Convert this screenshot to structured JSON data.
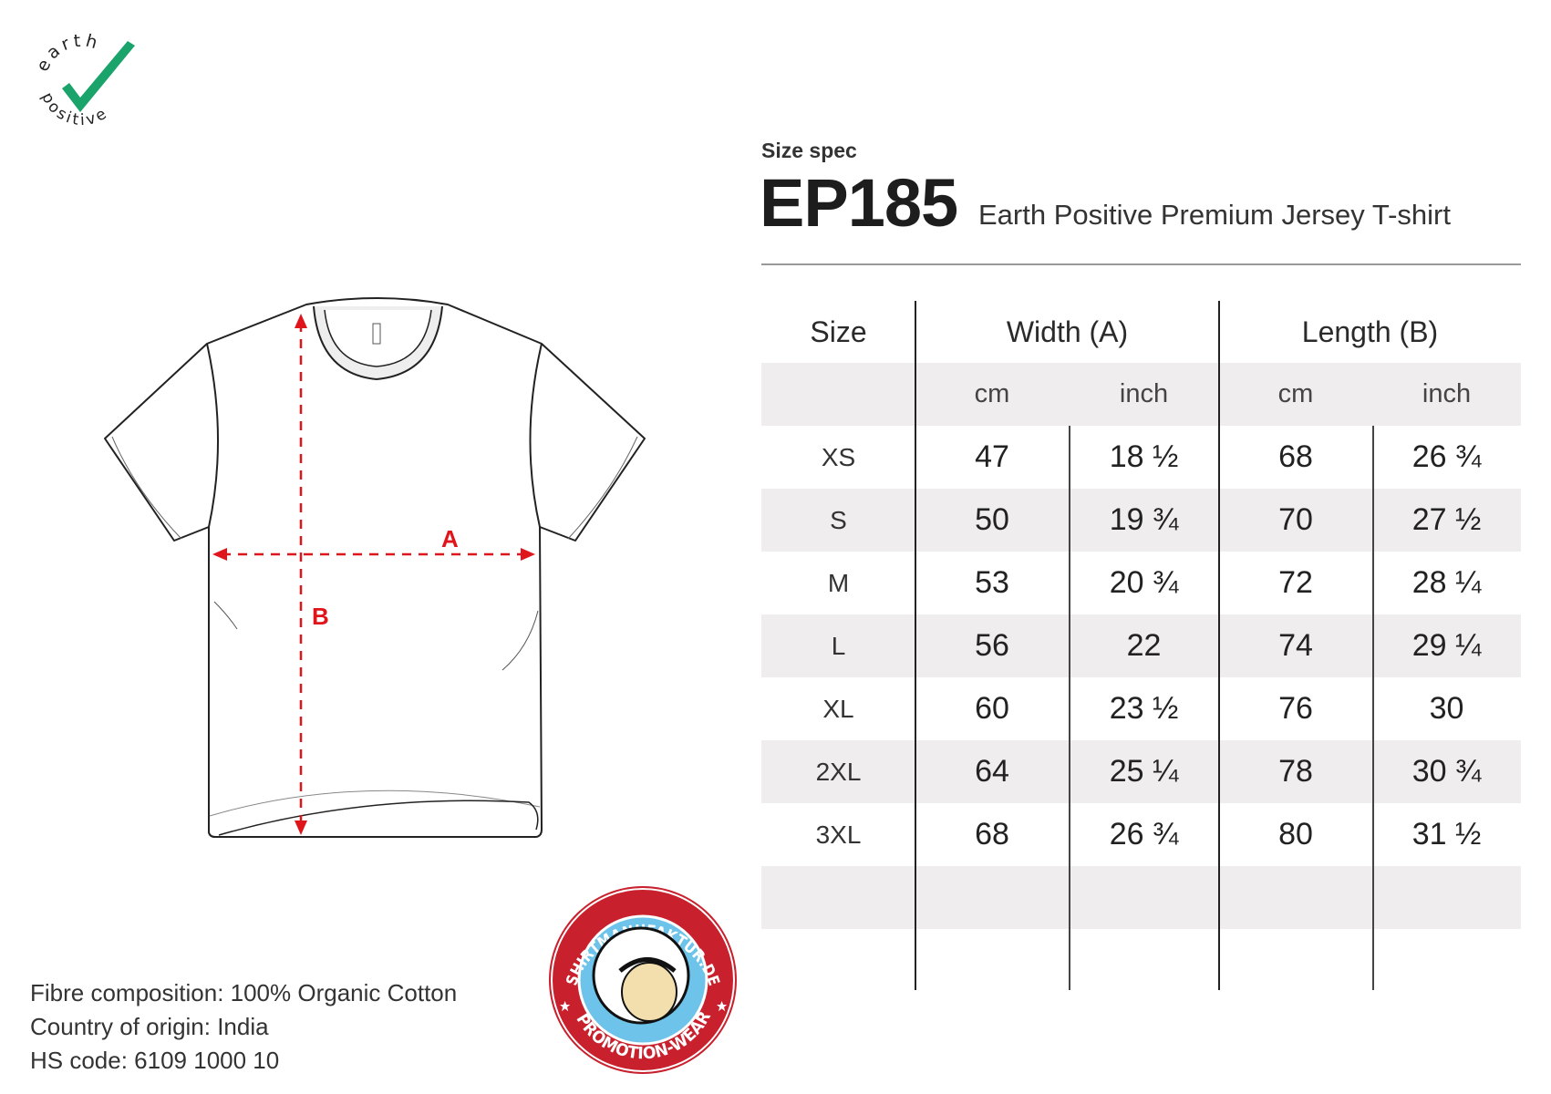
{
  "logo": {
    "text_top": "earth",
    "text_bottom": "positive",
    "color": "#1aa36a"
  },
  "header": {
    "label": "Size spec",
    "code": "EP185",
    "title": "Earth Positive Premium Jersey T-shirt"
  },
  "diagram": {
    "label_a": "A",
    "label_b": "B",
    "arrow_color": "#e0141b"
  },
  "table": {
    "headers": {
      "size": "Size",
      "width": "Width (A)",
      "length": "Length (B)"
    },
    "units": {
      "width_cm": "cm",
      "width_inch": "inch",
      "length_cm": "cm",
      "length_inch": "inch"
    },
    "rows": [
      {
        "size": "XS",
        "width_cm": "47",
        "width_inch": "18 ½",
        "length_cm": "68",
        "length_inch": "26 ¾"
      },
      {
        "size": "S",
        "width_cm": "50",
        "width_inch": "19 ¾",
        "length_cm": "70",
        "length_inch": "27 ½"
      },
      {
        "size": "M",
        "width_cm": "53",
        "width_inch": "20 ¾",
        "length_cm": "72",
        "length_inch": "28 ¼"
      },
      {
        "size": "L",
        "width_cm": "56",
        "width_inch": "22",
        "length_cm": "74",
        "length_inch": "29 ¼"
      },
      {
        "size": "XL",
        "width_cm": "60",
        "width_inch": "23 ½",
        "length_cm": "76",
        "length_inch": "30"
      },
      {
        "size": "2XL",
        "width_cm": "64",
        "width_inch": "25 ¼",
        "length_cm": "78",
        "length_inch": "30 ¾"
      },
      {
        "size": "3XL",
        "width_cm": "68",
        "width_inch": "26 ¾",
        "length_cm": "80",
        "length_inch": "31 ½"
      }
    ]
  },
  "footer": {
    "fibre": "Fibre composition: 100% Organic Cotton",
    "origin": "Country of origin: India",
    "hs": "HS code: 6109 1000 10"
  },
  "badge": {
    "text_top": "SHIRTMANUFAKTUR.DE",
    "text_bottom": "PROMOTION-WEAR",
    "ring_color": "#c8202d",
    "inner_color": "#6ec3ea"
  }
}
